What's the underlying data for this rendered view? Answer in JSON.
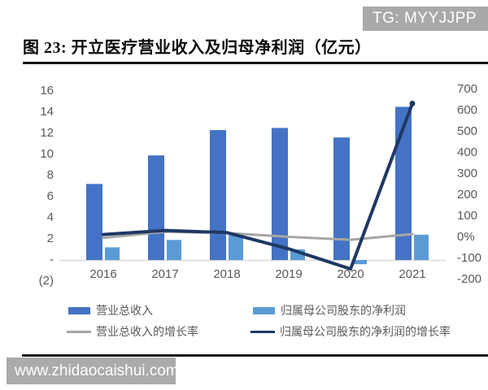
{
  "header": {
    "badge": "TG: MYYJJPP",
    "title": "图 23:  开立医疗营业收入及归母净利润（亿元）"
  },
  "footer": {
    "watermark": "www.zhidaocaishui.com"
  },
  "colors": {
    "bar_revenue": "#4472c4",
    "bar_profit": "#5b9bd5",
    "line_revenue_growth": "#a6a6a6",
    "line_profit_growth": "#1f3864",
    "axis_text": "#595959",
    "axis_line": "#d9d9d9",
    "badge_bg": "#a9a9a9",
    "watermark_bg": "#ababab"
  },
  "chart_data": {
    "type": "bar",
    "title": "开立医疗营业收入及归母净利润（亿元）",
    "categories": [
      "2016",
      "2017",
      "2018",
      "2019",
      "2020",
      "2021"
    ],
    "series": [
      {
        "name": "营业总收入",
        "kind": "bar",
        "axis": "left",
        "color": "#4472c4",
        "values": [
          7.2,
          9.9,
          12.3,
          12.5,
          11.6,
          14.5
        ]
      },
      {
        "name": "归属母公司股东的净利润",
        "kind": "bar",
        "axis": "left",
        "color": "#5b9bd5",
        "values": [
          1.2,
          1.9,
          2.5,
          1.0,
          -0.4,
          2.4
        ]
      },
      {
        "name": "营业总收入的增长率",
        "kind": "line",
        "axis": "right",
        "color": "#a6a6a6",
        "values": [
          -3,
          26,
          20,
          2,
          -12,
          15
        ]
      },
      {
        "name": "归属母公司股东的净利润的增长率",
        "kind": "line",
        "axis": "right",
        "color": "#1f3864",
        "values": [
          13,
          32,
          22,
          -55,
          -150,
          633
        ]
      }
    ],
    "left_axis": {
      "min": -2,
      "max": 16,
      "tick_values": [
        16,
        14,
        12,
        10,
        8,
        6,
        4,
        2,
        0,
        -2
      ],
      "tick_labels": [
        "16",
        "14",
        "12",
        "10",
        "8",
        "6",
        "4",
        "2",
        "-",
        "(2)"
      ]
    },
    "right_axis": {
      "min": -200,
      "max": 700,
      "tick_values": [
        700,
        600,
        500,
        400,
        300,
        200,
        100,
        0,
        -100,
        -200
      ],
      "tick_labels": [
        "700",
        "600",
        "500",
        "400",
        "300",
        "200",
        "100",
        "0%",
        "-100",
        "-200"
      ]
    },
    "legend_position": "bottom",
    "grid": false
  }
}
